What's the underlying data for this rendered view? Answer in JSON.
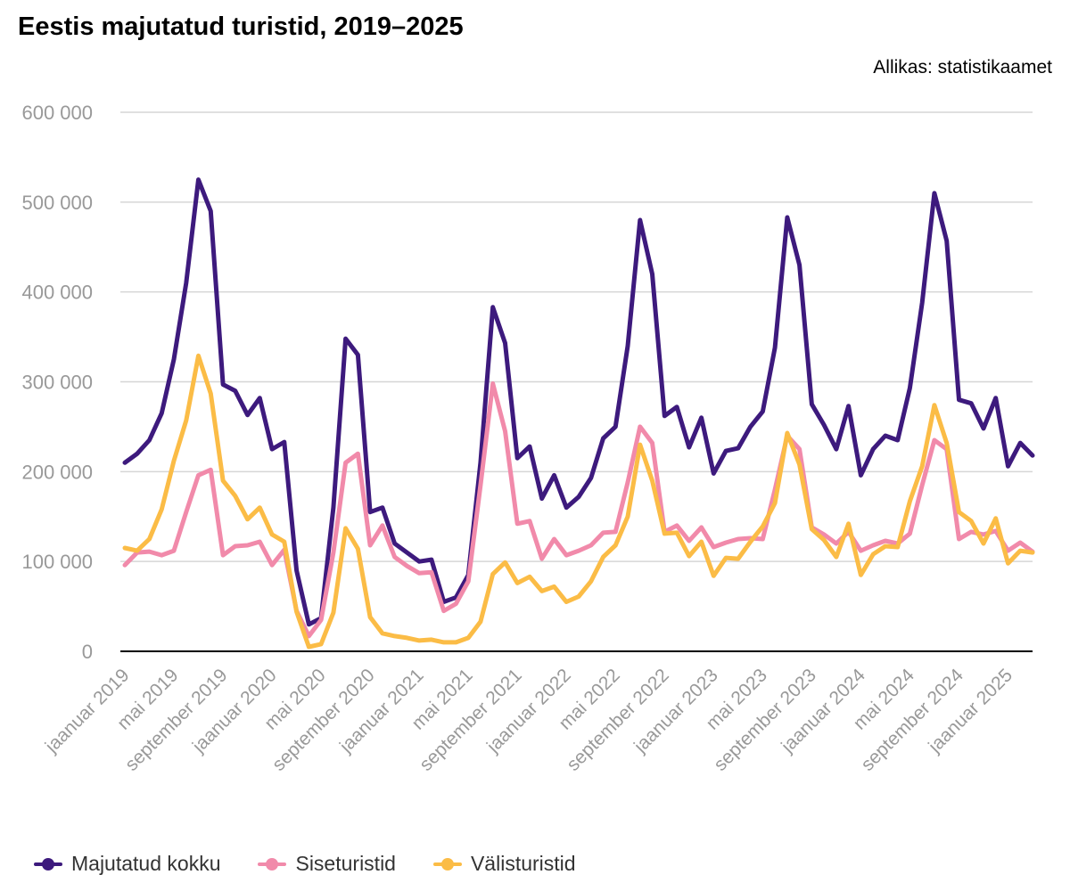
{
  "title": "Eestis majutatud turistid, 2019–2025",
  "source": "Allikas: statistikaamet",
  "chart_data": {
    "type": "line",
    "title": "Eestis majutatud turistid, 2019–2025",
    "ylim": [
      0,
      600000
    ],
    "yticks": [
      0,
      100000,
      200000,
      300000,
      400000,
      500000,
      600000
    ],
    "ytick_labels": [
      "0",
      "100 000",
      "200 000",
      "300 000",
      "400 000",
      "500 000",
      "600 000"
    ],
    "xtick_labels": [
      "jaanuar 2019",
      "mai 2019",
      "september 2019",
      "jaanuar 2020",
      "mai 2020",
      "september 2020",
      "jaanuar 2021",
      "mai 2021",
      "september 2021",
      "jaanuar 2022",
      "mai 2022",
      "september 2022",
      "jaanuar 2023",
      "mai 2023",
      "september 2023",
      "jaanuar 2024",
      "mai 2024",
      "september 2024",
      "jaanuar 2025"
    ],
    "grid": true,
    "legend_position": "bottom-left",
    "series": [
      {
        "name": "Majutatud kokku",
        "color": "#3d1a7d",
        "values": [
          210000,
          220000,
          235000,
          265000,
          325000,
          410000,
          525000,
          490000,
          297000,
          290000,
          263000,
          282000,
          225000,
          233000,
          90000,
          30000,
          37000,
          160000,
          348000,
          330000,
          155000,
          160000,
          120000,
          110000,
          100000,
          102000,
          55000,
          60000,
          85000,
          210000,
          383000,
          343000,
          215000,
          228000,
          170000,
          196000,
          160000,
          172000,
          193000,
          237000,
          250000,
          340000,
          480000,
          420000,
          262000,
          272000,
          227000,
          260000,
          198000,
          223000,
          226000,
          250000,
          267000,
          338000,
          483000,
          430000,
          275000,
          252000,
          225000,
          273000,
          196000,
          225000,
          240000,
          235000,
          293000,
          388000,
          510000,
          457000,
          280000,
          276000,
          248000,
          282000,
          206000,
          232000,
          218000
        ]
      },
      {
        "name": "Siseturistid",
        "color": "#f18aaa",
        "values": [
          96000,
          110000,
          111000,
          107000,
          112000,
          155000,
          196000,
          202000,
          107000,
          117000,
          118000,
          122000,
          96000,
          113000,
          45000,
          17000,
          35000,
          110000,
          210000,
          220000,
          118000,
          140000,
          105000,
          95000,
          87000,
          88000,
          45000,
          53000,
          78000,
          185000,
          298000,
          245000,
          142000,
          145000,
          103000,
          125000,
          107000,
          112000,
          118000,
          132000,
          133000,
          188000,
          250000,
          232000,
          133000,
          140000,
          123000,
          138000,
          116000,
          121000,
          125000,
          126000,
          125000,
          180000,
          240000,
          225000,
          138000,
          130000,
          120000,
          133000,
          112000,
          118000,
          123000,
          120000,
          131000,
          185000,
          235000,
          225000,
          125000,
          133000,
          130000,
          134000,
          112000,
          121000,
          111000
        ]
      },
      {
        "name": "Välisturistid",
        "color": "#fbbc46",
        "values": [
          115000,
          112000,
          125000,
          158000,
          212000,
          257000,
          329000,
          287000,
          190000,
          173000,
          147000,
          160000,
          130000,
          122000,
          44000,
          5000,
          8000,
          43000,
          137000,
          114000,
          38000,
          20000,
          17000,
          15000,
          12000,
          13000,
          10000,
          10000,
          15000,
          33000,
          86000,
          99000,
          76000,
          83000,
          67000,
          72000,
          55000,
          61000,
          78000,
          105000,
          118000,
          150000,
          230000,
          190000,
          131000,
          132000,
          106000,
          122000,
          84000,
          104000,
          103000,
          122000,
          139000,
          165000,
          243000,
          208000,
          136000,
          124000,
          105000,
          142000,
          85000,
          108000,
          117000,
          116000,
          167000,
          206000,
          274000,
          232000,
          155000,
          145000,
          120000,
          148000,
          98000,
          112000,
          110000
        ]
      }
    ]
  }
}
